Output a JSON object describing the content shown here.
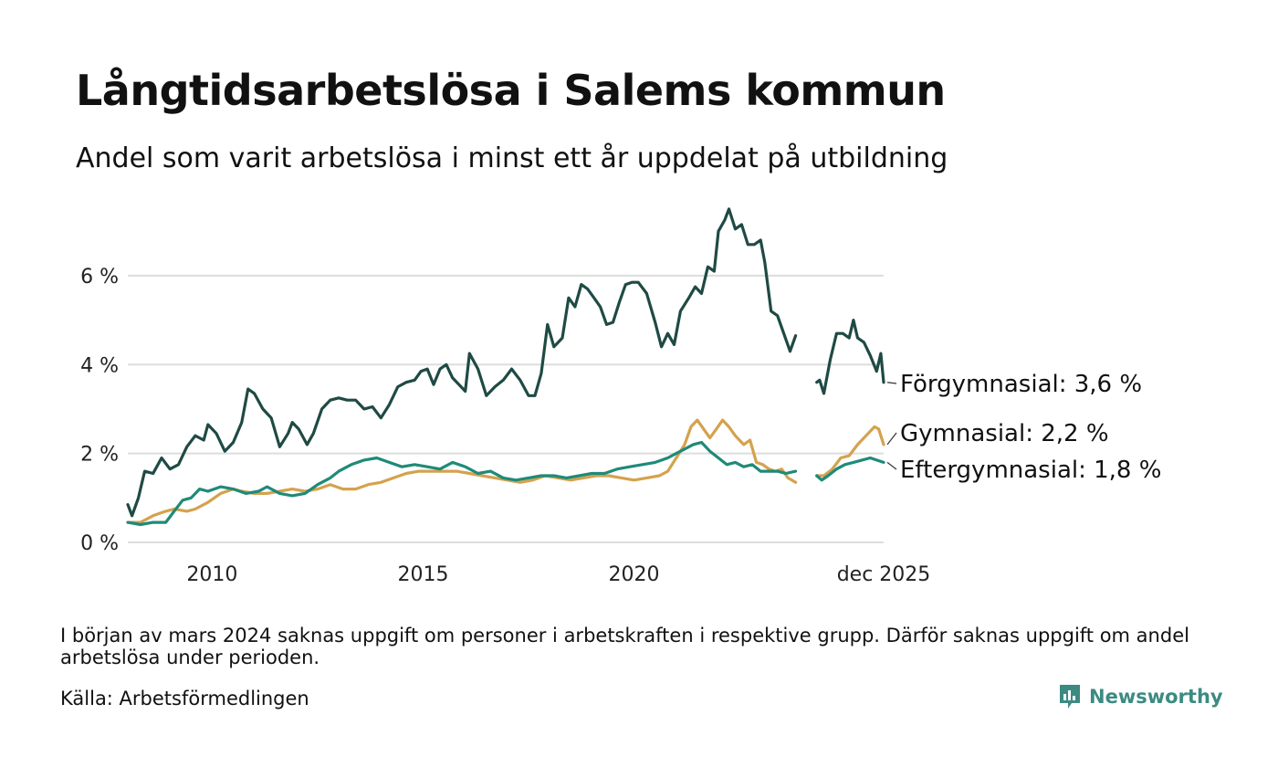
{
  "title": "Långtidsarbetslösa i Salems kommun",
  "subtitle": "Andel som varit arbetslösa i minst ett år uppdelat på utbildning",
  "note": "I början av mars 2024 saknas uppgift om personer i arbetskraften i respektive grupp. Därför saknas uppgift om andel arbetslösa under perioden.",
  "source": "Källa: Arbetsförmedlingen",
  "brand": {
    "name": "Newsworthy",
    "icon": "newsworthy-logo-icon",
    "color": "#3c8b82"
  },
  "chart_data": {
    "type": "line",
    "title": "Långtidsarbetslösa i Salems kommun",
    "xlabel": "",
    "ylabel": "",
    "x_range": [
      2008.0,
      2025.917
    ],
    "ylim": [
      0,
      7.6
    ],
    "y_ticks": [
      0,
      2,
      4,
      6
    ],
    "y_tick_labels": [
      "0 %",
      "2 %",
      "4 %",
      "6 %"
    ],
    "x_ticks": [
      2010,
      2015,
      2020,
      2025.917
    ],
    "x_tick_labels": [
      "2010",
      "2015",
      "2020",
      "dec 2025"
    ],
    "gap": [
      2023.83,
      2024.33
    ],
    "grid": true,
    "series": [
      {
        "name": "Förgymnasial",
        "label": "Förgymnasial: 3,6 %",
        "color": "#1f4a44",
        "points": [
          [
            2008.0,
            0.85
          ],
          [
            2008.1,
            0.6
          ],
          [
            2008.25,
            1.0
          ],
          [
            2008.4,
            1.6
          ],
          [
            2008.6,
            1.55
          ],
          [
            2008.8,
            1.9
          ],
          [
            2009.0,
            1.65
          ],
          [
            2009.2,
            1.75
          ],
          [
            2009.4,
            2.15
          ],
          [
            2009.6,
            2.4
          ],
          [
            2009.8,
            2.3
          ],
          [
            2009.9,
            2.65
          ],
          [
            2010.1,
            2.45
          ],
          [
            2010.3,
            2.05
          ],
          [
            2010.5,
            2.25
          ],
          [
            2010.7,
            2.7
          ],
          [
            2010.85,
            3.45
          ],
          [
            2011.0,
            3.35
          ],
          [
            2011.2,
            3.0
          ],
          [
            2011.4,
            2.8
          ],
          [
            2011.6,
            2.15
          ],
          [
            2011.8,
            2.45
          ],
          [
            2011.9,
            2.7
          ],
          [
            2012.05,
            2.55
          ],
          [
            2012.25,
            2.2
          ],
          [
            2012.4,
            2.45
          ],
          [
            2012.6,
            3.0
          ],
          [
            2012.8,
            3.2
          ],
          [
            2013.0,
            3.25
          ],
          [
            2013.2,
            3.2
          ],
          [
            2013.4,
            3.2
          ],
          [
            2013.6,
            3.0
          ],
          [
            2013.8,
            3.05
          ],
          [
            2014.0,
            2.8
          ],
          [
            2014.2,
            3.1
          ],
          [
            2014.4,
            3.5
          ],
          [
            2014.6,
            3.6
          ],
          [
            2014.8,
            3.65
          ],
          [
            2014.95,
            3.85
          ],
          [
            2015.1,
            3.9
          ],
          [
            2015.25,
            3.55
          ],
          [
            2015.4,
            3.9
          ],
          [
            2015.55,
            4.0
          ],
          [
            2015.7,
            3.7
          ],
          [
            2015.85,
            3.55
          ],
          [
            2016.0,
            3.4
          ],
          [
            2016.1,
            4.25
          ],
          [
            2016.3,
            3.9
          ],
          [
            2016.5,
            3.3
          ],
          [
            2016.7,
            3.5
          ],
          [
            2016.9,
            3.65
          ],
          [
            2017.1,
            3.9
          ],
          [
            2017.3,
            3.65
          ],
          [
            2017.5,
            3.3
          ],
          [
            2017.65,
            3.3
          ],
          [
            2017.8,
            3.8
          ],
          [
            2017.95,
            4.9
          ],
          [
            2018.1,
            4.4
          ],
          [
            2018.3,
            4.6
          ],
          [
            2018.45,
            5.5
          ],
          [
            2018.6,
            5.3
          ],
          [
            2018.75,
            5.8
          ],
          [
            2018.9,
            5.7
          ],
          [
            2019.05,
            5.5
          ],
          [
            2019.2,
            5.3
          ],
          [
            2019.35,
            4.9
          ],
          [
            2019.5,
            4.95
          ],
          [
            2019.65,
            5.4
          ],
          [
            2019.8,
            5.8
          ],
          [
            2019.95,
            5.85
          ],
          [
            2020.1,
            5.85
          ],
          [
            2020.3,
            5.6
          ],
          [
            2020.5,
            4.95
          ],
          [
            2020.65,
            4.4
          ],
          [
            2020.8,
            4.7
          ],
          [
            2020.95,
            4.45
          ],
          [
            2021.1,
            5.2
          ],
          [
            2021.3,
            5.5
          ],
          [
            2021.45,
            5.75
          ],
          [
            2021.6,
            5.6
          ],
          [
            2021.75,
            6.2
          ],
          [
            2021.9,
            6.1
          ],
          [
            2022.0,
            7.0
          ],
          [
            2022.15,
            7.25
          ],
          [
            2022.25,
            7.5
          ],
          [
            2022.4,
            7.05
          ],
          [
            2022.55,
            7.15
          ],
          [
            2022.7,
            6.7
          ],
          [
            2022.85,
            6.7
          ],
          [
            2023.0,
            6.8
          ],
          [
            2023.1,
            6.3
          ],
          [
            2023.25,
            5.2
          ],
          [
            2023.4,
            5.1
          ],
          [
            2023.55,
            4.7
          ],
          [
            2023.7,
            4.3
          ],
          [
            2023.83,
            4.65
          ],
          [
            2024.33,
            3.6
          ],
          [
            2024.4,
            3.65
          ],
          [
            2024.5,
            3.35
          ],
          [
            2024.65,
            4.1
          ],
          [
            2024.8,
            4.7
          ],
          [
            2024.95,
            4.7
          ],
          [
            2025.1,
            4.6
          ],
          [
            2025.2,
            5.0
          ],
          [
            2025.3,
            4.6
          ],
          [
            2025.45,
            4.5
          ],
          [
            2025.6,
            4.2
          ],
          [
            2025.75,
            3.85
          ],
          [
            2025.85,
            4.25
          ],
          [
            2025.917,
            3.6
          ]
        ]
      },
      {
        "name": "Gymnasial",
        "label": "Gymnasial: 2,2 %",
        "color": "#d4a24e",
        "points": [
          [
            2008.0,
            0.45
          ],
          [
            2008.3,
            0.45
          ],
          [
            2008.6,
            0.6
          ],
          [
            2008.9,
            0.7
          ],
          [
            2009.1,
            0.75
          ],
          [
            2009.4,
            0.7
          ],
          [
            2009.6,
            0.75
          ],
          [
            2009.9,
            0.9
          ],
          [
            2010.2,
            1.1
          ],
          [
            2010.5,
            1.2
          ],
          [
            2010.7,
            1.15
          ],
          [
            2011.0,
            1.1
          ],
          [
            2011.3,
            1.1
          ],
          [
            2011.6,
            1.15
          ],
          [
            2011.9,
            1.2
          ],
          [
            2012.2,
            1.15
          ],
          [
            2012.5,
            1.2
          ],
          [
            2012.8,
            1.3
          ],
          [
            2013.1,
            1.2
          ],
          [
            2013.4,
            1.2
          ],
          [
            2013.7,
            1.3
          ],
          [
            2014.0,
            1.35
          ],
          [
            2014.3,
            1.45
          ],
          [
            2014.6,
            1.55
          ],
          [
            2014.9,
            1.6
          ],
          [
            2015.2,
            1.6
          ],
          [
            2015.5,
            1.6
          ],
          [
            2015.8,
            1.6
          ],
          [
            2016.1,
            1.55
          ],
          [
            2016.4,
            1.5
          ],
          [
            2016.7,
            1.45
          ],
          [
            2017.0,
            1.4
          ],
          [
            2017.3,
            1.35
          ],
          [
            2017.6,
            1.4
          ],
          [
            2017.9,
            1.5
          ],
          [
            2018.2,
            1.45
          ],
          [
            2018.5,
            1.4
          ],
          [
            2018.8,
            1.45
          ],
          [
            2019.1,
            1.5
          ],
          [
            2019.4,
            1.5
          ],
          [
            2019.7,
            1.45
          ],
          [
            2020.0,
            1.4
          ],
          [
            2020.3,
            1.45
          ],
          [
            2020.6,
            1.5
          ],
          [
            2020.8,
            1.6
          ],
          [
            2021.0,
            1.9
          ],
          [
            2021.2,
            2.2
          ],
          [
            2021.35,
            2.6
          ],
          [
            2021.5,
            2.75
          ],
          [
            2021.65,
            2.55
          ],
          [
            2021.8,
            2.35
          ],
          [
            2021.95,
            2.55
          ],
          [
            2022.1,
            2.75
          ],
          [
            2022.25,
            2.6
          ],
          [
            2022.4,
            2.4
          ],
          [
            2022.6,
            2.2
          ],
          [
            2022.75,
            2.3
          ],
          [
            2022.9,
            1.8
          ],
          [
            2023.05,
            1.75
          ],
          [
            2023.2,
            1.65
          ],
          [
            2023.35,
            1.6
          ],
          [
            2023.5,
            1.65
          ],
          [
            2023.65,
            1.45
          ],
          [
            2023.83,
            1.35
          ],
          [
            2024.33,
            1.5
          ],
          [
            2024.5,
            1.5
          ],
          [
            2024.7,
            1.65
          ],
          [
            2024.9,
            1.9
          ],
          [
            2025.1,
            1.95
          ],
          [
            2025.3,
            2.2
          ],
          [
            2025.5,
            2.4
          ],
          [
            2025.7,
            2.6
          ],
          [
            2025.8,
            2.55
          ],
          [
            2025.917,
            2.2
          ]
        ]
      },
      {
        "name": "Eftergymnasial",
        "label": "Eftergymnasial: 1,8 %",
        "color": "#1f8a78",
        "points": [
          [
            2008.0,
            0.45
          ],
          [
            2008.3,
            0.4
          ],
          [
            2008.6,
            0.45
          ],
          [
            2008.9,
            0.45
          ],
          [
            2009.1,
            0.7
          ],
          [
            2009.3,
            0.95
          ],
          [
            2009.5,
            1.0
          ],
          [
            2009.7,
            1.2
          ],
          [
            2009.9,
            1.15
          ],
          [
            2010.2,
            1.25
          ],
          [
            2010.5,
            1.2
          ],
          [
            2010.8,
            1.1
          ],
          [
            2011.1,
            1.15
          ],
          [
            2011.3,
            1.25
          ],
          [
            2011.6,
            1.1
          ],
          [
            2011.9,
            1.05
          ],
          [
            2012.2,
            1.1
          ],
          [
            2012.5,
            1.3
          ],
          [
            2012.8,
            1.45
          ],
          [
            2013.0,
            1.6
          ],
          [
            2013.3,
            1.75
          ],
          [
            2013.6,
            1.85
          ],
          [
            2013.9,
            1.9
          ],
          [
            2014.2,
            1.8
          ],
          [
            2014.5,
            1.7
          ],
          [
            2014.8,
            1.75
          ],
          [
            2015.1,
            1.7
          ],
          [
            2015.4,
            1.65
          ],
          [
            2015.7,
            1.8
          ],
          [
            2016.0,
            1.7
          ],
          [
            2016.3,
            1.55
          ],
          [
            2016.6,
            1.6
          ],
          [
            2016.9,
            1.45
          ],
          [
            2017.2,
            1.4
          ],
          [
            2017.5,
            1.45
          ],
          [
            2017.8,
            1.5
          ],
          [
            2018.1,
            1.5
          ],
          [
            2018.4,
            1.45
          ],
          [
            2018.7,
            1.5
          ],
          [
            2019.0,
            1.55
          ],
          [
            2019.3,
            1.55
          ],
          [
            2019.6,
            1.65
          ],
          [
            2019.9,
            1.7
          ],
          [
            2020.2,
            1.75
          ],
          [
            2020.5,
            1.8
          ],
          [
            2020.8,
            1.9
          ],
          [
            2021.0,
            2.0
          ],
          [
            2021.2,
            2.1
          ],
          [
            2021.4,
            2.2
          ],
          [
            2021.6,
            2.25
          ],
          [
            2021.8,
            2.05
          ],
          [
            2022.0,
            1.9
          ],
          [
            2022.2,
            1.75
          ],
          [
            2022.4,
            1.8
          ],
          [
            2022.6,
            1.7
          ],
          [
            2022.8,
            1.75
          ],
          [
            2023.0,
            1.6
          ],
          [
            2023.2,
            1.6
          ],
          [
            2023.4,
            1.6
          ],
          [
            2023.6,
            1.55
          ],
          [
            2023.83,
            1.6
          ],
          [
            2024.33,
            1.5
          ],
          [
            2024.45,
            1.4
          ],
          [
            2024.6,
            1.5
          ],
          [
            2024.8,
            1.65
          ],
          [
            2025.0,
            1.75
          ],
          [
            2025.2,
            1.8
          ],
          [
            2025.4,
            1.85
          ],
          [
            2025.6,
            1.9
          ],
          [
            2025.917,
            1.8
          ]
        ]
      }
    ]
  }
}
